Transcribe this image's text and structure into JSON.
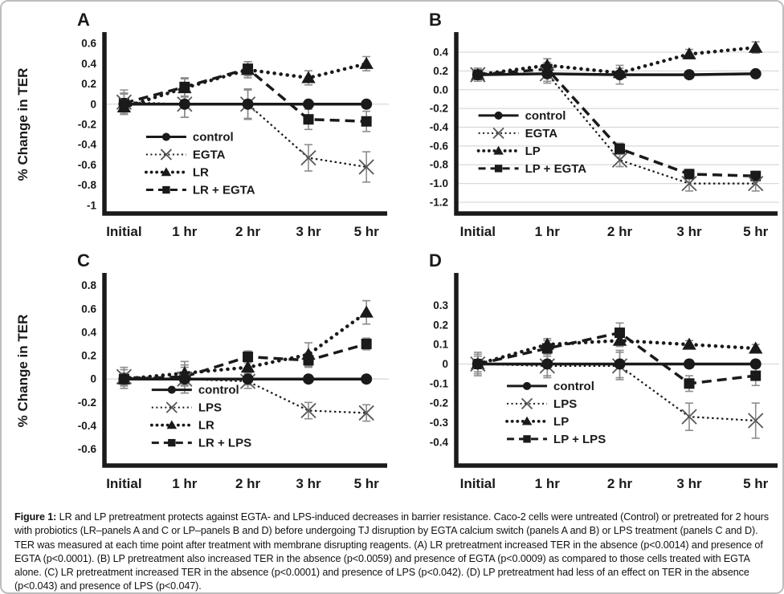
{
  "figure": {
    "caption_label": "Figure 1:",
    "caption_text": " LR and LP pretreatment protects against EGTA- and LPS-induced decreases in barrier resistance. Caco-2 cells were untreated (Control) or pretreated for 2 hours with probiotics (LR–panels A and C or LP–panels B and D) before undergoing TJ disruption by EGTA calcium switch (panels A and B) or LPS treatment (panels C and D). TER was measured at each time point after treatment with membrane disrupting reagents. (A) LR pretreatment increased TER in the absence (p<0.0014) and presence of EGTA (p<0.0001). (B) LP pretreatment also increased TER in the absence (p<0.0059) and presence of EGTA (p<0.0009) as compared to those cells treated with EGTA alone. (C) LR pretreatment increased TER in the absence (p<0.0001) and presence of LPS (p<0.042). (D) LP pretreatment had less of an effect on TER in the absence (p<0.043) and presence of LPS (p<0.047)."
  },
  "colors": {
    "line": "#1a1a1a",
    "error_bar": "#8c8c8c",
    "x_marker": "#555555",
    "grid": "#d9d9d9",
    "border": "#bdbdbd"
  },
  "chart_data": [
    {
      "type": "line",
      "panel": "A",
      "ylabel": "% Change in TER",
      "categories": [
        "Initial",
        "1 hr",
        "2 hr",
        "3 hr",
        "5 hr"
      ],
      "ylim": [
        -1.08,
        0.68
      ],
      "yticks": [
        0.6,
        0.4,
        0.2,
        0,
        -0.2,
        -0.4,
        -0.6,
        -0.8,
        -1
      ],
      "ytick_labels": [
        "0.6",
        "0.4",
        "0.2",
        "0",
        "-0.2",
        "-0.4",
        "-0.6",
        "-0.8",
        "-1"
      ],
      "grid": "zero",
      "legend_position": "inside-lower-left",
      "legend_frac": [
        0.15,
        0.57
      ],
      "series": [
        {
          "name": "control",
          "style": "solid-circle",
          "values": [
            0,
            0,
            0,
            0,
            0
          ],
          "err": [
            0.1,
            0.13,
            0.15,
            0.03,
            0.03
          ]
        },
        {
          "name": "EGTA",
          "style": "dotted-x",
          "values": [
            0.02,
            0.0,
            0.0,
            -0.53,
            -0.62
          ],
          "err": [
            0.12,
            0.13,
            0.14,
            0.13,
            0.15
          ]
        },
        {
          "name": "LR",
          "style": "dot-triangle",
          "values": [
            -0.03,
            0.16,
            0.34,
            0.26,
            0.4
          ],
          "err": [
            0.07,
            0.09,
            0.08,
            0.07,
            0.07
          ]
        },
        {
          "name": "LR + EGTA",
          "style": "dashed-square",
          "values": [
            0.01,
            0.17,
            0.35,
            -0.15,
            -0.17
          ],
          "err": [
            0.1,
            0.09,
            0.07,
            0.1,
            0.1
          ]
        }
      ]
    },
    {
      "type": "line",
      "panel": "B",
      "ylabel": "% Change in TER",
      "categories": [
        "Initial",
        "1 hr",
        "2 hr",
        "3 hr",
        "5 hr"
      ],
      "ylim": [
        -1.32,
        0.58
      ],
      "yticks": [
        0.4,
        0.2,
        0.0,
        -0.2,
        -0.4,
        -0.6,
        -0.8,
        -1.0,
        -1.2
      ],
      "ytick_labels": [
        "0.4",
        "0.2",
        "0.0",
        "-0.2",
        "-0.4",
        "-0.6",
        "-0.8",
        "-1.0",
        "-1.2"
      ],
      "grid": "all",
      "legend_position": "inside-middle-left",
      "legend_frac": [
        0.07,
        0.45
      ],
      "series": [
        {
          "name": "control",
          "style": "solid-circle",
          "values": [
            0.16,
            0.17,
            0.16,
            0.16,
            0.17
          ],
          "err": [
            0.07,
            0.1,
            0.1,
            0.02,
            0.02
          ]
        },
        {
          "name": "EGTA",
          "style": "dotted-x",
          "values": [
            0.16,
            0.17,
            -0.75,
            -1.0,
            -1.0
          ],
          "err": [
            0.05,
            0.08,
            0.07,
            0.08,
            0.08
          ]
        },
        {
          "name": "LP",
          "style": "dot-triangle",
          "values": [
            0.16,
            0.26,
            0.18,
            0.38,
            0.45
          ],
          "err": [
            0.04,
            0.07,
            0.05,
            0.05,
            0.06
          ]
        },
        {
          "name": "LP + EGTA",
          "style": "dashed-square",
          "values": [
            0.16,
            0.22,
            -0.63,
            -0.9,
            -0.92
          ],
          "err": [
            0.05,
            0.07,
            0.06,
            0.05,
            0.05
          ]
        }
      ]
    },
    {
      "type": "line",
      "panel": "C",
      "ylabel": "% Change in TER",
      "categories": [
        "Initial",
        "1 hr",
        "2 hr",
        "3 hr",
        "5 hr"
      ],
      "ylim": [
        -0.74,
        0.88
      ],
      "yticks": [
        0.8,
        0.6,
        0.4,
        0.2,
        0,
        -0.2,
        -0.4,
        -0.6
      ],
      "ytick_labels": [
        "0.8",
        "0.6",
        "0.4",
        "0.2",
        "0",
        "-0.2",
        "-0.4",
        "-0.6"
      ],
      "grid": "zero",
      "legend_position": "inside-lower-left",
      "legend_frac": [
        0.17,
        0.6
      ],
      "series": [
        {
          "name": "control",
          "style": "solid-circle",
          "values": [
            0,
            0,
            0,
            0,
            0
          ],
          "err": [
            0.08,
            0.12,
            0.05,
            0.03,
            0.02
          ]
        },
        {
          "name": "LPS",
          "style": "dotted-x",
          "values": [
            0.02,
            0.0,
            -0.02,
            -0.27,
            -0.29
          ],
          "err": [
            0.08,
            0.12,
            0.06,
            0.07,
            0.07
          ]
        },
        {
          "name": "LR",
          "style": "dot-triangle",
          "values": [
            0.0,
            0.05,
            0.1,
            0.21,
            0.57
          ],
          "err": [
            0.03,
            0.1,
            0.04,
            0.1,
            0.1
          ]
        },
        {
          "name": "LR + LPS",
          "style": "dashed-square",
          "values": [
            0.0,
            0.02,
            0.19,
            0.16,
            0.3
          ],
          "err": [
            0.05,
            0.08,
            0.05,
            0.06,
            0.05
          ]
        }
      ]
    },
    {
      "type": "line",
      "panel": "D",
      "ylabel": "% Change in TER",
      "categories": [
        "Initial",
        "1 hr",
        "2 hr",
        "3 hr",
        "5 hr"
      ],
      "ylim": [
        -0.52,
        0.45
      ],
      "yticks": [
        0.3,
        0.2,
        0.1,
        0,
        -0.1,
        -0.2,
        -0.3,
        -0.4
      ],
      "ytick_labels": [
        "0.3",
        "0.2",
        "0.1",
        "0",
        "-0.1",
        "-0.2",
        "-0.3",
        "-0.4"
      ],
      "grid": "zero",
      "legend_position": "inside-lower-left",
      "legend_frac": [
        0.16,
        0.58
      ],
      "series": [
        {
          "name": "control",
          "style": "solid-circle",
          "values": [
            0,
            0,
            0,
            0,
            0
          ],
          "err": [
            0.06,
            0.06,
            0.07,
            0.02,
            0.02
          ]
        },
        {
          "name": "LPS",
          "style": "dotted-x",
          "values": [
            0.0,
            -0.01,
            -0.01,
            -0.27,
            -0.29
          ],
          "err": [
            0.05,
            0.06,
            0.07,
            0.07,
            0.09
          ]
        },
        {
          "name": "LP",
          "style": "dot-triangle",
          "values": [
            0.0,
            0.1,
            0.12,
            0.1,
            0.08
          ],
          "err": [
            0.02,
            0.03,
            0.03,
            0.02,
            0.02
          ]
        },
        {
          "name": "LP + LPS",
          "style": "dashed-square",
          "values": [
            0.0,
            0.08,
            0.16,
            -0.1,
            -0.06
          ],
          "err": [
            0.04,
            0.04,
            0.05,
            0.04,
            0.05
          ]
        }
      ]
    }
  ]
}
